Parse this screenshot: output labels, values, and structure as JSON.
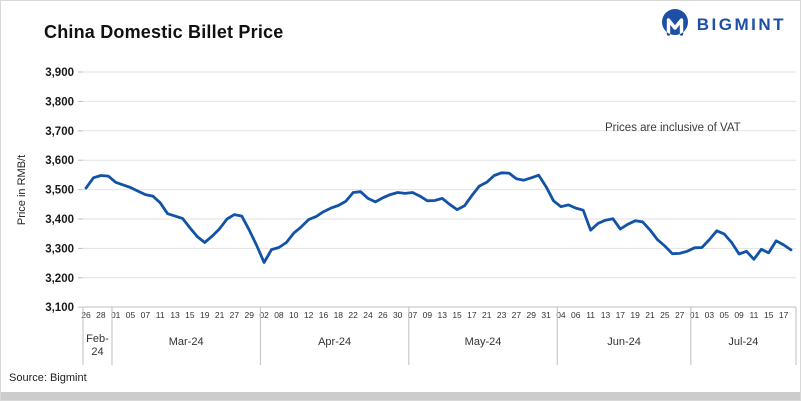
{
  "header": {
    "title": "China Domestic Billet Price",
    "logo_text": "BIGMINT"
  },
  "annotation": "Prices are inclusive of VAT",
  "source": "Source: Bigmint",
  "colors": {
    "line": "#1253a6",
    "logo_blue": "#1d4fa5",
    "grid": "#e2e2e2",
    "axis": "#bfbfbf",
    "tick_text": "#1a1a1a",
    "label_text": "#333333"
  },
  "chart_data": {
    "type": "line",
    "title": "China Domestic Billet Price",
    "ylabel": "Price in RMB/t",
    "ylim": [
      3100,
      3900
    ],
    "y_ticks": [
      "3,100",
      "3,200",
      "3,300",
      "3,400",
      "3,500",
      "3,600",
      "3,700",
      "3,800",
      "3,900"
    ],
    "grid": true,
    "legend": false,
    "label_every": 2,
    "x_labels": [
      "26",
      "28",
      "01",
      "05",
      "07",
      "11",
      "13",
      "15",
      "19",
      "21",
      "27",
      "29",
      "02",
      "08",
      "10",
      "12",
      "16",
      "18",
      "22",
      "24",
      "26",
      "30",
      "07",
      "09",
      "13",
      "15",
      "17",
      "21",
      "23",
      "27",
      "29",
      "31",
      "04",
      "06",
      "11",
      "13",
      "17",
      "19",
      "21",
      "25",
      "27",
      "01",
      "03",
      "05",
      "09",
      "11",
      "15",
      "17"
    ],
    "months": [
      {
        "label": "Feb-24",
        "points": 4
      },
      {
        "label": "Mar-24",
        "points": 20
      },
      {
        "label": "Apr-24",
        "points": 20
      },
      {
        "label": "May-24",
        "points": 20
      },
      {
        "label": "Jun-24",
        "points": 18
      },
      {
        "label": "Jul-24",
        "points": 14
      }
    ],
    "values": [
      3505,
      3540,
      3548,
      3546,
      3525,
      3516,
      3507,
      3495,
      3483,
      3478,
      3455,
      3418,
      3410,
      3402,
      3370,
      3340,
      3320,
      3342,
      3367,
      3400,
      3415,
      3410,
      3362,
      3310,
      3252,
      3296,
      3303,
      3320,
      3352,
      3373,
      3398,
      3408,
      3425,
      3437,
      3446,
      3460,
      3490,
      3493,
      3470,
      3458,
      3472,
      3483,
      3490,
      3487,
      3490,
      3478,
      3462,
      3463,
      3470,
      3450,
      3432,
      3445,
      3480,
      3512,
      3525,
      3548,
      3557,
      3556,
      3537,
      3532,
      3540,
      3549,
      3510,
      3462,
      3442,
      3448,
      3437,
      3430,
      3362,
      3385,
      3396,
      3401,
      3366,
      3382,
      3394,
      3390,
      3363,
      3330,
      3308,
      3282,
      3283,
      3290,
      3302,
      3303,
      3330,
      3360,
      3349,
      3320,
      3281,
      3290,
      3263,
      3297,
      3285,
      3326,
      3312,
      3295
    ]
  }
}
